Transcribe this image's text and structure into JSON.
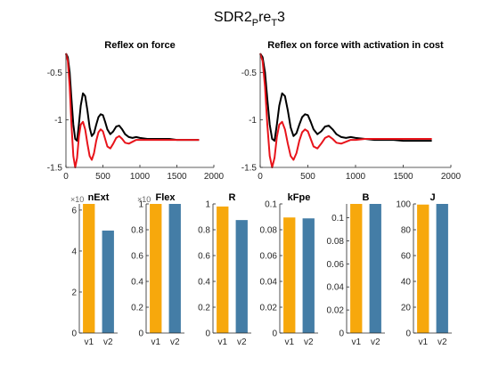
{
  "figure": {
    "title_main": "SDR2",
    "title_sub1": "P",
    "title_mid": "re",
    "title_sub2": "T",
    "title_end": "3"
  },
  "colors": {
    "black": "#000000",
    "red": "#e8141b",
    "orange": "#f7a80c",
    "blue": "#447da6",
    "axis": "#262626"
  },
  "chart_data": [
    {
      "type": "line",
      "title": "Reflex on force",
      "xlim": [
        0,
        2000
      ],
      "ylim": [
        -1.5,
        -0.3
      ],
      "xticks": [
        0,
        500,
        1000,
        1500,
        2000
      ],
      "xticklabels": [
        "0",
        "500",
        "1000",
        "1500",
        "2000"
      ],
      "yticks": [
        -1.5,
        -1,
        -0.5
      ],
      "yticklabels": [
        "-1.5",
        "-1",
        "-0.5"
      ],
      "series": [
        {
          "color": "black",
          "x": [
            0,
            25,
            50,
            75,
            100,
            125,
            150,
            175,
            200,
            230,
            260,
            290,
            320,
            350,
            380,
            410,
            440,
            470,
            500,
            530,
            560,
            600,
            640,
            680,
            720,
            760,
            800,
            850,
            900,
            950,
            1000,
            1100,
            1200,
            1300,
            1400,
            1500,
            1600,
            1700,
            1800
          ],
          "y": [
            -0.3,
            -0.34,
            -0.5,
            -0.78,
            -1.05,
            -1.2,
            -1.22,
            -1.05,
            -0.85,
            -0.72,
            -0.75,
            -0.9,
            -1.08,
            -1.17,
            -1.14,
            -1.05,
            -0.97,
            -0.94,
            -0.95,
            -1.02,
            -1.1,
            -1.15,
            -1.12,
            -1.07,
            -1.06,
            -1.1,
            -1.15,
            -1.18,
            -1.19,
            -1.18,
            -1.19,
            -1.2,
            -1.2,
            -1.2,
            -1.2,
            -1.21,
            -1.21,
            -1.21,
            -1.21
          ]
        },
        {
          "color": "red",
          "x": [
            0,
            25,
            50,
            75,
            100,
            125,
            150,
            175,
            200,
            230,
            260,
            290,
            320,
            350,
            380,
            410,
            440,
            470,
            500,
            530,
            560,
            600,
            640,
            680,
            720,
            760,
            800,
            850,
            900,
            950,
            1000,
            1100,
            1200,
            1300,
            1400,
            1500,
            1600,
            1700,
            1800
          ],
          "y": [
            -0.3,
            -0.38,
            -0.65,
            -1.05,
            -1.38,
            -1.5,
            -1.4,
            -1.18,
            -1.05,
            -1.02,
            -1.1,
            -1.25,
            -1.38,
            -1.42,
            -1.35,
            -1.22,
            -1.13,
            -1.1,
            -1.12,
            -1.2,
            -1.28,
            -1.3,
            -1.25,
            -1.19,
            -1.17,
            -1.2,
            -1.24,
            -1.25,
            -1.23,
            -1.21,
            -1.21,
            -1.21,
            -1.21,
            -1.21,
            -1.21,
            -1.21,
            -1.21,
            -1.21,
            -1.21
          ]
        }
      ]
    },
    {
      "type": "line",
      "title": "Reflex on force with activation in cost",
      "xlim": [
        0,
        2000
      ],
      "ylim": [
        -1.5,
        -0.3
      ],
      "xticks": [
        0,
        500,
        1000,
        1500,
        2000
      ],
      "xticklabels": [
        "0",
        "500",
        "1000",
        "1500",
        "2000"
      ],
      "yticks": [
        -1.5,
        -1,
        -0.5
      ],
      "yticklabels": [
        "-1.5",
        "-1",
        "-0.5"
      ],
      "series": [
        {
          "color": "black",
          "x": [
            0,
            25,
            50,
            75,
            100,
            125,
            150,
            175,
            200,
            230,
            260,
            290,
            320,
            350,
            380,
            410,
            440,
            470,
            500,
            530,
            560,
            600,
            640,
            680,
            720,
            760,
            800,
            850,
            900,
            950,
            1000,
            1100,
            1200,
            1300,
            1400,
            1500,
            1600,
            1700,
            1800
          ],
          "y": [
            -0.3,
            -0.34,
            -0.5,
            -0.78,
            -1.05,
            -1.2,
            -1.22,
            -1.05,
            -0.85,
            -0.72,
            -0.75,
            -0.9,
            -1.08,
            -1.17,
            -1.14,
            -1.05,
            -0.97,
            -0.94,
            -0.95,
            -1.02,
            -1.1,
            -1.15,
            -1.12,
            -1.07,
            -1.06,
            -1.1,
            -1.15,
            -1.18,
            -1.19,
            -1.18,
            -1.19,
            -1.2,
            -1.21,
            -1.21,
            -1.21,
            -1.22,
            -1.22,
            -1.22,
            -1.22
          ]
        },
        {
          "color": "red",
          "x": [
            0,
            25,
            50,
            75,
            100,
            125,
            150,
            175,
            200,
            230,
            260,
            290,
            320,
            350,
            380,
            410,
            440,
            470,
            500,
            530,
            560,
            600,
            640,
            680,
            720,
            760,
            800,
            850,
            900,
            950,
            1000,
            1100,
            1200,
            1300,
            1400,
            1500,
            1600,
            1700,
            1800
          ],
          "y": [
            -0.3,
            -0.38,
            -0.65,
            -1.05,
            -1.38,
            -1.5,
            -1.4,
            -1.18,
            -1.05,
            -1.02,
            -1.1,
            -1.25,
            -1.38,
            -1.42,
            -1.35,
            -1.22,
            -1.13,
            -1.1,
            -1.12,
            -1.2,
            -1.28,
            -1.3,
            -1.25,
            -1.19,
            -1.17,
            -1.2,
            -1.24,
            -1.25,
            -1.23,
            -1.21,
            -1.21,
            -1.2,
            -1.2,
            -1.2,
            -1.2,
            -1.2,
            -1.2,
            -1.2,
            -1.2
          ]
        }
      ]
    },
    {
      "type": "bar",
      "title": "nExt",
      "exponent": "×10",
      "categories": [
        "v1",
        "v2"
      ],
      "values": [
        6.3,
        5.0
      ],
      "ylim": [
        0,
        6.3
      ],
      "yticks": [
        0,
        2,
        4,
        6
      ],
      "yticklabels": [
        "0",
        "2",
        "4",
        "6"
      ]
    },
    {
      "type": "bar",
      "title": "Flex",
      "exponent": "×10",
      "categories": [
        "v1",
        "v2"
      ],
      "values": [
        1.0,
        1.0
      ],
      "ylim": [
        0,
        1
      ],
      "yticks": [
        0,
        0.2,
        0.4,
        0.6,
        0.8,
        1
      ],
      "yticklabels": [
        "0",
        "0.2",
        "0.4",
        "0.6",
        "0.8",
        "1"
      ]
    },
    {
      "type": "bar",
      "title": "R",
      "categories": [
        "v1",
        "v2"
      ],
      "values": [
        0.98,
        0.875
      ],
      "ylim": [
        0,
        1
      ],
      "yticks": [
        0,
        0.2,
        0.4,
        0.6,
        0.8,
        1
      ],
      "yticklabels": [
        "0",
        "0.2",
        "0.4",
        "0.6",
        "0.8",
        "1"
      ]
    },
    {
      "type": "bar",
      "title": "kFpe",
      "categories": [
        "v1",
        "v2"
      ],
      "values": [
        0.0895,
        0.0888
      ],
      "ylim": [
        0,
        0.1
      ],
      "yticks": [
        0,
        0.02,
        0.04,
        0.06,
        0.08,
        0.1
      ],
      "yticklabels": [
        "0",
        "0.02",
        "0.04",
        "0.06",
        "0.08",
        "0.1"
      ]
    },
    {
      "type": "bar",
      "title": "B",
      "categories": [
        "v1",
        "v2"
      ],
      "values": [
        0.112,
        0.112
      ],
      "ylim": [
        0,
        0.112
      ],
      "yticks": [
        0,
        0.02,
        0.04,
        0.06,
        0.08,
        0.1
      ],
      "yticklabels": [
        "0",
        "0.02",
        "0.04",
        "0.06",
        "0.08",
        "0.1"
      ]
    },
    {
      "type": "bar",
      "title": "J",
      "categories": [
        "v1",
        "v2"
      ],
      "values": [
        99.5,
        100.5
      ],
      "ylim": [
        0,
        100
      ],
      "yticks": [
        0,
        20,
        40,
        60,
        80,
        100
      ],
      "yticklabels": [
        "0",
        "20",
        "40",
        "60",
        "80",
        "100"
      ]
    }
  ]
}
